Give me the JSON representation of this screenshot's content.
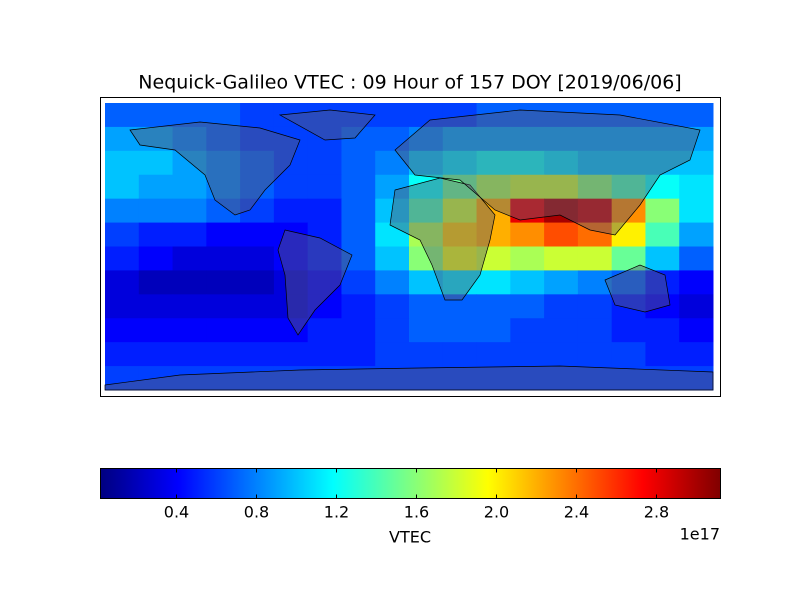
{
  "chart_data": {
    "type": "heatmap",
    "title": "Nequick-Galileo VTEC : 09 Hour of 157 DOY [2019/06/06]",
    "colormap": "jet",
    "clim": [
      0.02,
      3.12
    ],
    "values": [
      [
        0.7,
        0.7,
        0.7,
        0.7,
        0.6,
        0.6,
        0.6,
        0.6,
        0.6,
        0.6,
        0.6,
        0.7,
        0.7,
        0.7,
        0.7,
        0.7,
        0.7,
        0.7
      ],
      [
        0.9,
        0.9,
        0.8,
        0.7,
        0.6,
        0.6,
        0.6,
        0.7,
        0.7,
        0.8,
        0.9,
        0.9,
        0.9,
        0.9,
        0.9,
        0.9,
        0.9,
        0.9
      ],
      [
        1.0,
        1.0,
        0.9,
        0.8,
        0.7,
        0.6,
        0.6,
        0.7,
        0.8,
        1.0,
        1.1,
        1.2,
        1.2,
        1.1,
        1.0,
        1.0,
        1.0,
        1.0
      ],
      [
        1.0,
        0.9,
        0.9,
        0.8,
        0.7,
        0.6,
        0.6,
        0.7,
        0.9,
        1.2,
        1.5,
        1.7,
        1.8,
        1.8,
        1.6,
        1.4,
        1.2,
        1.1
      ],
      [
        0.8,
        0.8,
        0.8,
        0.7,
        0.6,
        0.5,
        0.5,
        0.7,
        1.0,
        1.4,
        1.8,
        2.2,
        2.8,
        3.0,
        2.9,
        2.3,
        1.6,
        1.1
      ],
      [
        0.6,
        0.5,
        0.5,
        0.4,
        0.4,
        0.4,
        0.5,
        0.7,
        1.1,
        1.7,
        2.1,
        2.2,
        2.3,
        2.5,
        2.4,
        2.0,
        1.4,
        0.9
      ],
      [
        0.5,
        0.4,
        0.3,
        0.3,
        0.3,
        0.4,
        0.5,
        0.7,
        1.0,
        1.6,
        1.9,
        1.8,
        1.7,
        1.8,
        1.8,
        1.5,
        1.0,
        0.7
      ],
      [
        0.3,
        0.2,
        0.2,
        0.2,
        0.2,
        0.3,
        0.4,
        0.6,
        0.8,
        1.0,
        1.1,
        1.1,
        1.0,
        0.9,
        0.8,
        0.7,
        0.5,
        0.4
      ],
      [
        0.3,
        0.3,
        0.3,
        0.3,
        0.3,
        0.3,
        0.4,
        0.5,
        0.6,
        0.7,
        0.7,
        0.7,
        0.7,
        0.6,
        0.6,
        0.5,
        0.4,
        0.3
      ],
      [
        0.4,
        0.4,
        0.4,
        0.4,
        0.4,
        0.4,
        0.5,
        0.5,
        0.6,
        0.7,
        0.7,
        0.7,
        0.6,
        0.6,
        0.6,
        0.5,
        0.5,
        0.4
      ],
      [
        0.5,
        0.5,
        0.5,
        0.5,
        0.5,
        0.5,
        0.5,
        0.5,
        0.6,
        0.6,
        0.6,
        0.6,
        0.6,
        0.6,
        0.6,
        0.6,
        0.5,
        0.5
      ],
      [
        0.6,
        0.6,
        0.6,
        0.6,
        0.6,
        0.6,
        0.6,
        0.6,
        0.6,
        0.6,
        0.6,
        0.6,
        0.6,
        0.6,
        0.6,
        0.6,
        0.6,
        0.6
      ]
    ],
    "colorbar": {
      "label": "VTEC",
      "offset_label": "1e17",
      "ticks": [
        0.4,
        0.8,
        1.2,
        1.6,
        {
          "value": 2,
          "label": "2.0"
        },
        2.4,
        2.8
      ]
    }
  }
}
